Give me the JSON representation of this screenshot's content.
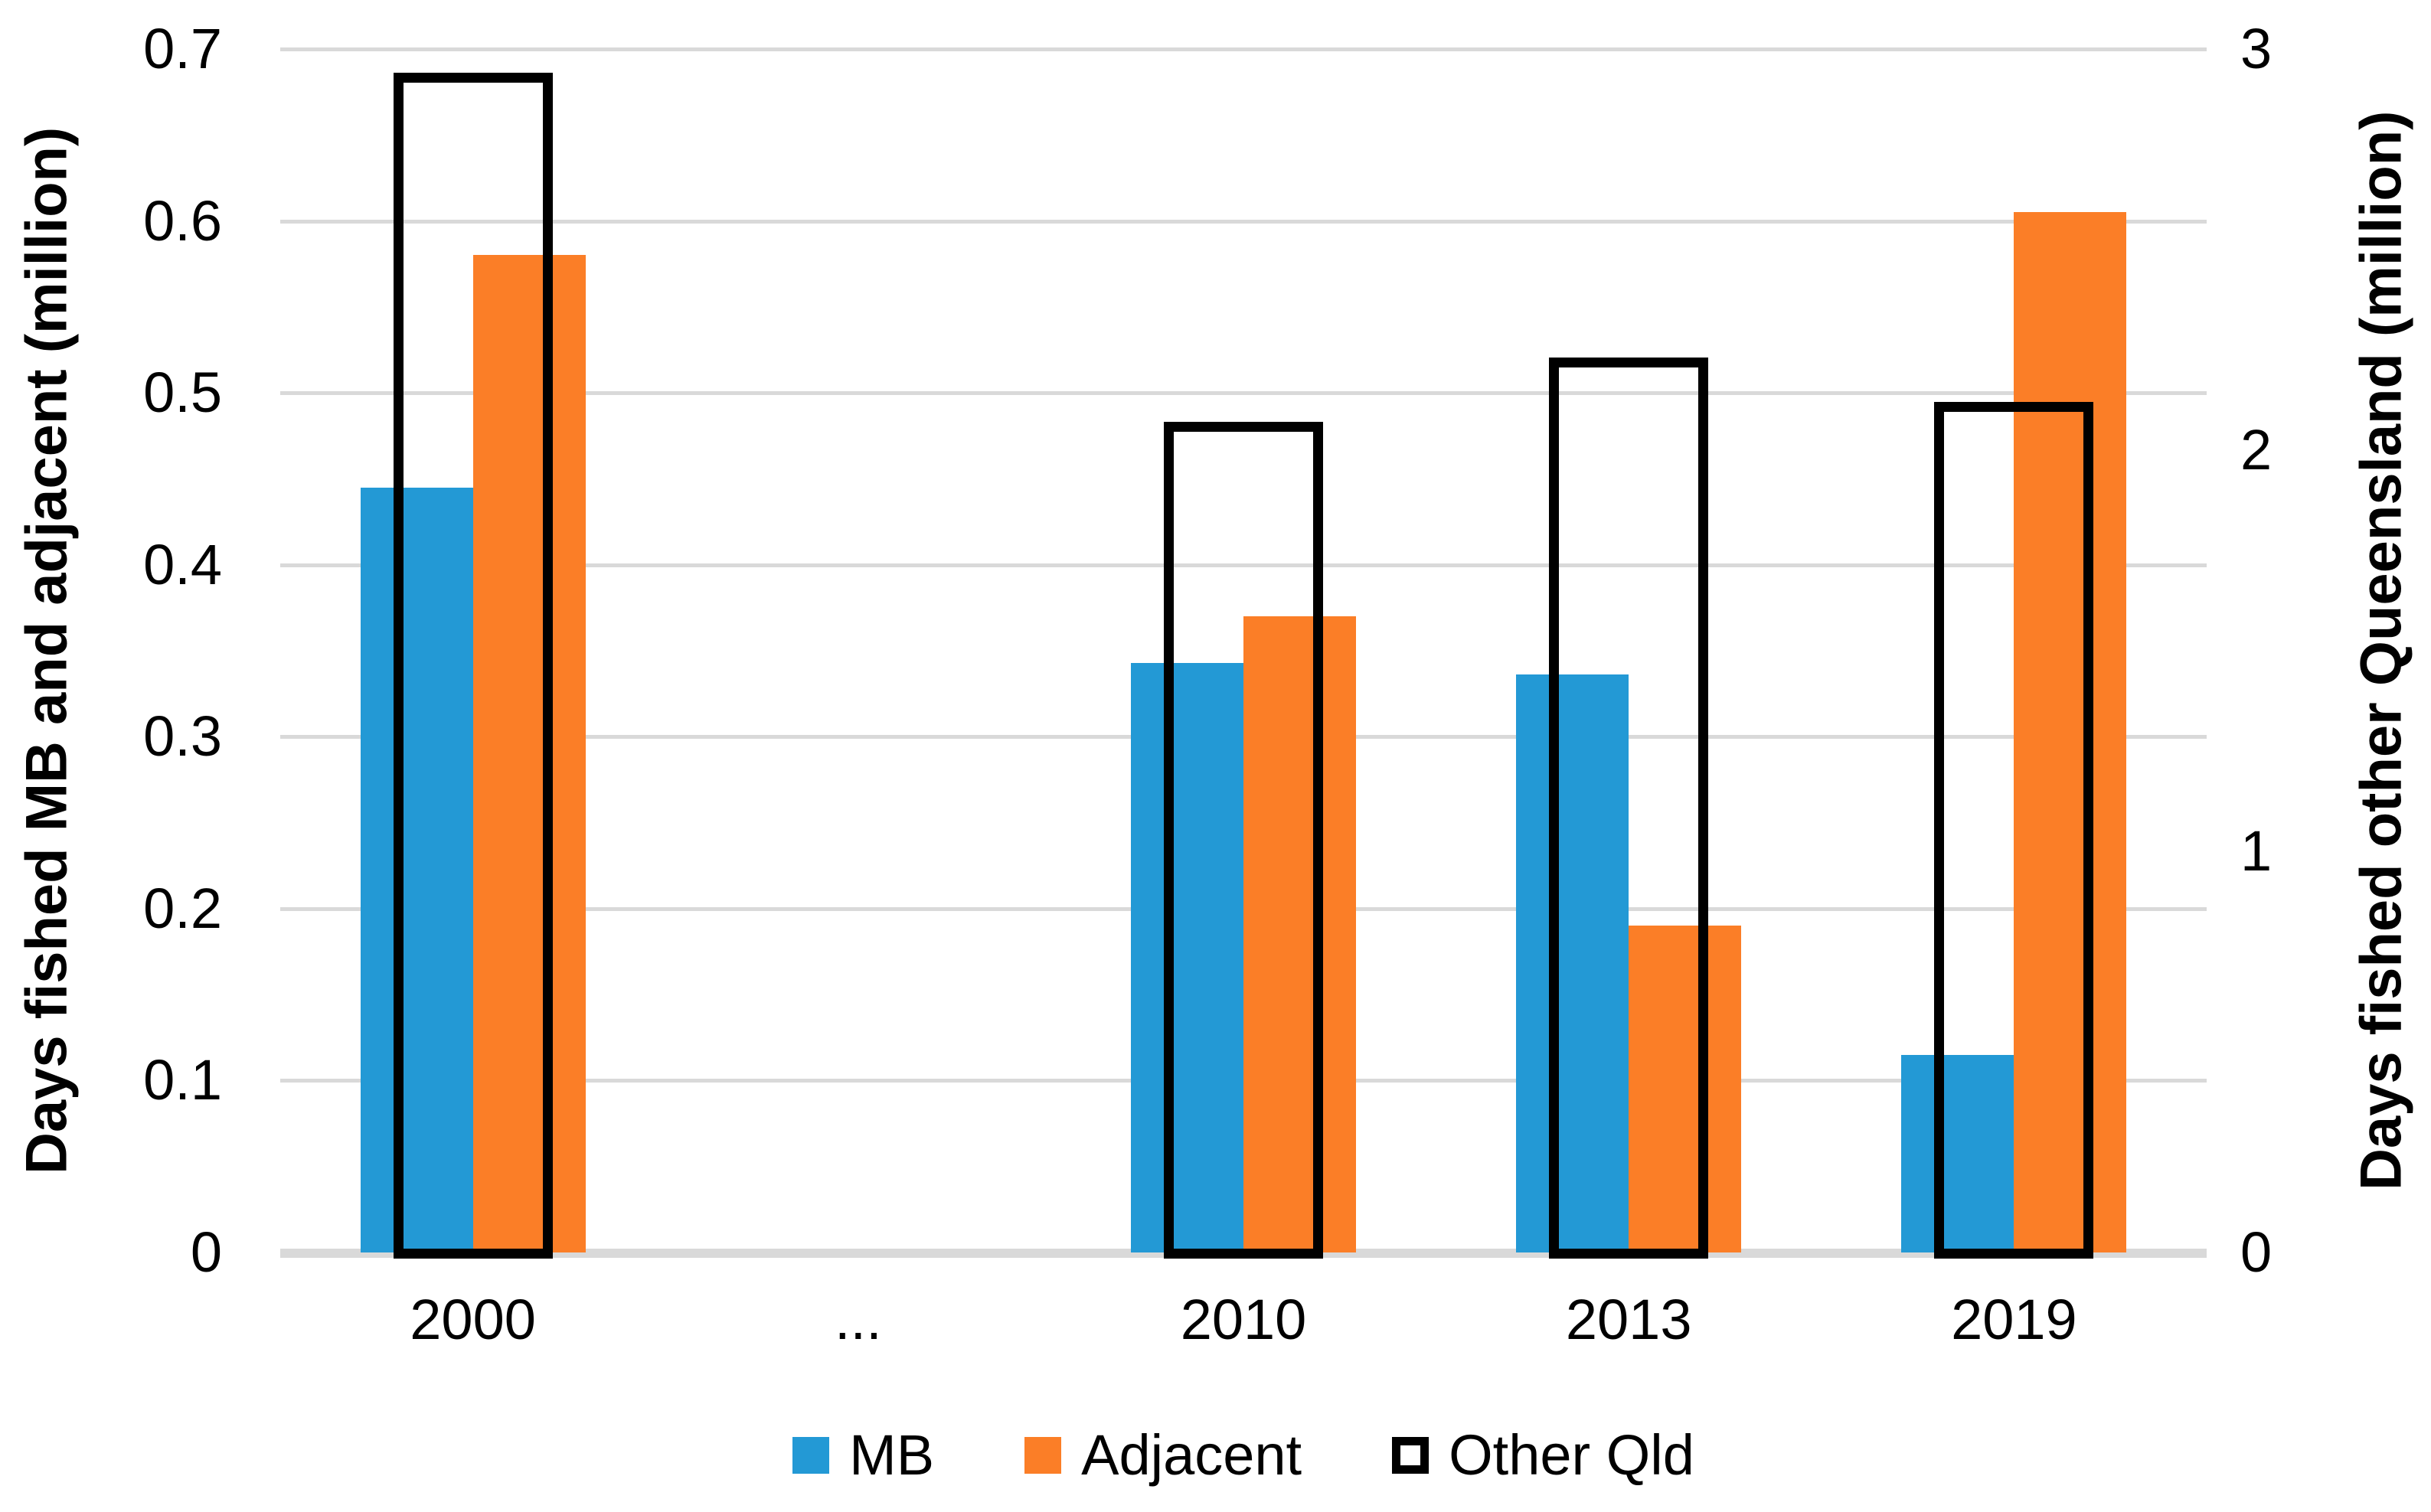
{
  "chart_data": {
    "type": "bar",
    "title": "",
    "categories": [
      "2000",
      "...",
      "2010",
      "2013",
      "2019"
    ],
    "series": [
      {
        "name": "MB",
        "axis": "left",
        "style": "filled",
        "color": "#2399D5",
        "values": [
          0.445,
          null,
          0.343,
          0.336,
          0.115
        ]
      },
      {
        "name": "Adjacent",
        "axis": "left",
        "style": "filled",
        "color": "#FB7E27",
        "values": [
          0.58,
          null,
          0.37,
          0.19,
          0.605
        ]
      },
      {
        "name": "Other Qld",
        "axis": "right",
        "style": "outline",
        "color": "#000000",
        "values": [
          2.94,
          null,
          2.07,
          2.23,
          2.12
        ]
      }
    ],
    "left_axis": {
      "label": "Days fished MB and adjacent (million)",
      "min": 0,
      "max": 0.7,
      "ticks": [
        "0",
        "0.1",
        "0.2",
        "0.3",
        "0.4",
        "0.5",
        "0.6",
        "0.7"
      ]
    },
    "right_axis": {
      "label": "Days fished other Queensland (million)",
      "min": 0,
      "max": 3,
      "ticks": [
        "0",
        "1",
        "2",
        "3"
      ]
    },
    "legend_position": "bottom",
    "grid": true,
    "gridline_color": "#D9D9D9",
    "axis_line_color": "#D9D9D9",
    "text_color": "#000000",
    "background": "#FFFFFF"
  }
}
